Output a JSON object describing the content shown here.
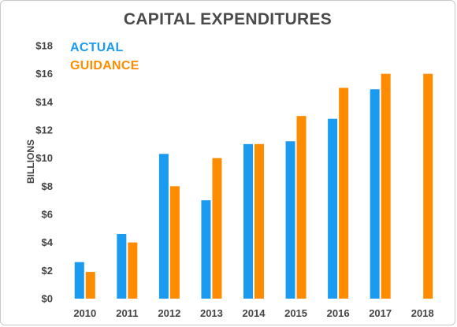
{
  "chart_data": {
    "type": "bar",
    "title": "CAPITAL EXPENDITURES",
    "ylabel": "BILLIONS",
    "xlabel": "",
    "categories": [
      "2010",
      "2011",
      "2012",
      "2013",
      "2014",
      "2015",
      "2016",
      "2017",
      "2018"
    ],
    "series": [
      {
        "name": "ACTUAL",
        "color": "#1a9bf0",
        "values": [
          2.6,
          4.6,
          10.3,
          7.0,
          11.0,
          11.2,
          12.8,
          14.9,
          null
        ]
      },
      {
        "name": "GUIDANCE",
        "color": "#ff8c00",
        "values": [
          1.9,
          4.0,
          8.0,
          10.0,
          11.0,
          13.0,
          15.0,
          16.0,
          16.0
        ]
      }
    ],
    "ylim": [
      0,
      18
    ],
    "yticks": [
      0,
      2,
      4,
      6,
      8,
      10,
      12,
      14,
      16,
      18
    ],
    "ytick_labels": [
      "$0",
      "$2",
      "$4",
      "$6",
      "$8",
      "$10",
      "$12",
      "$14",
      "$16",
      "$18"
    ],
    "grid": false,
    "legend_position": "top-left"
  }
}
